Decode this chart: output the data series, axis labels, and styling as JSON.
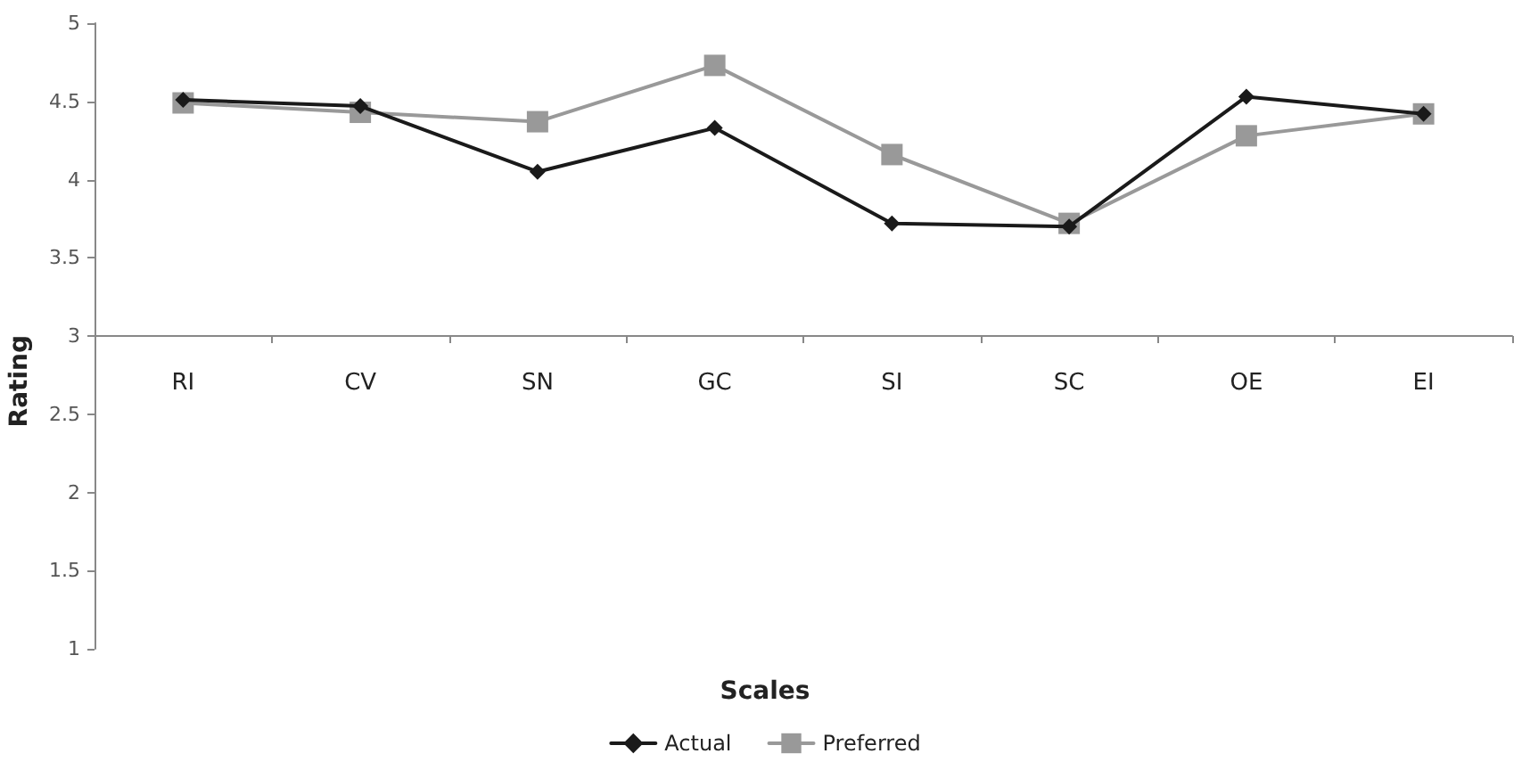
{
  "chart_data": {
    "type": "line",
    "xlabel": "Scales",
    "ylabel": "Rating",
    "categories": [
      "RI",
      "CV",
      "SN",
      "GC",
      "SI",
      "SC",
      "OE",
      "EI"
    ],
    "series": [
      {
        "name": "Actual",
        "color": "#1a1a1a",
        "marker": "diamond",
        "values": [
          4.51,
          4.47,
          4.05,
          4.33,
          3.72,
          3.7,
          4.53,
          4.42
        ]
      },
      {
        "name": "Preferred",
        "color": "#999999",
        "marker": "square",
        "values": [
          4.49,
          4.43,
          4.37,
          4.73,
          4.16,
          3.72,
          4.28,
          4.42
        ]
      }
    ],
    "ylim": [
      1,
      5
    ],
    "yticks": [
      1,
      1.5,
      2,
      2.5,
      3,
      3.5,
      4,
      4.5,
      5
    ],
    "grid": false,
    "legend": "bottom",
    "line_style": "solid"
  }
}
